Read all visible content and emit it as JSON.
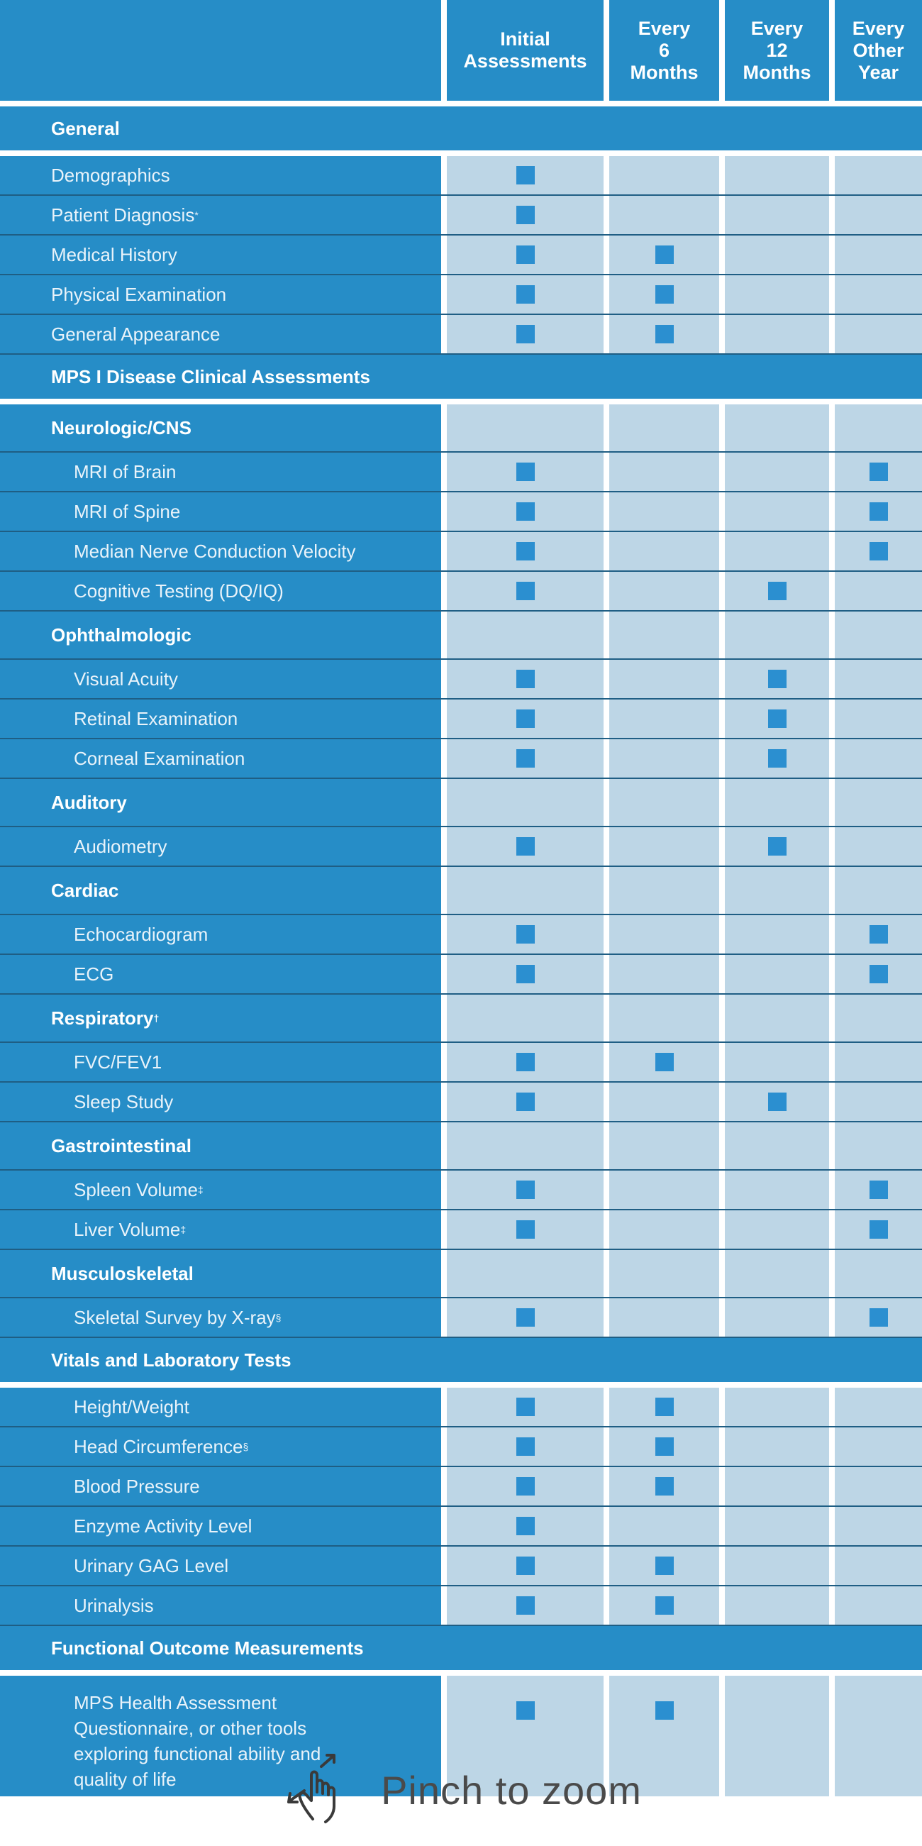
{
  "header": {
    "col1": "",
    "col2": "Initial\nAssessments",
    "col3": "Every\n6\nMonths",
    "col4": "Every\n12\nMonths",
    "col5": "Every\nOther\nYear"
  },
  "sections": {
    "general": "General",
    "mps": "MPS I Disease Clinical Assessments",
    "neuro": "Neurologic/CNS",
    "ophth": "Ophthalmologic",
    "auditory": "Auditory",
    "cardiac": "Cardiac",
    "resp": "Respiratory",
    "resp_mark": "†",
    "gi": "Gastrointestinal",
    "msk": "Musculoskeletal",
    "vitals": "Vitals and Laboratory Tests",
    "functional": "Functional Outcome Measurements"
  },
  "rows": {
    "demographics": "Demographics",
    "diagnosis": "Patient Diagnosis",
    "diagnosis_mark": "*",
    "history": "Medical History",
    "physical": "Physical Examination",
    "appearance": "General Appearance",
    "mri_brain": "MRI of Brain",
    "mri_spine": "MRI of Spine",
    "nerve": "Median Nerve Conduction Velocity",
    "cognitive": "Cognitive Testing (DQ/IQ)",
    "visual": "Visual Acuity",
    "retinal": "Retinal Examination",
    "corneal": "Corneal Examination",
    "audiometry": "Audiometry",
    "echo": "Echocardiogram",
    "ecg": "ECG",
    "fvc": "FVC/FEV1",
    "sleep": "Sleep Study",
    "spleen": "Spleen Volume",
    "spleen_mark": "‡",
    "liver": "Liver Volume",
    "liver_mark": "‡",
    "skeletal": "Skeletal Survey by X-ray",
    "skeletal_mark": "§",
    "height": "Height/Weight",
    "head": "Head Circumference",
    "head_mark": "§",
    "bp": "Blood Pressure",
    "enzyme": "Enzyme Activity Level",
    "gag": "Urinary GAG Level",
    "urinalysis": "Urinalysis",
    "mps_haq": "MPS Health Assessment\nQuestionnaire, or other tools\nexploring functional ability and\nquality of life"
  },
  "schedule": {
    "demographics": [
      true,
      false,
      false,
      false
    ],
    "diagnosis": [
      true,
      false,
      false,
      false
    ],
    "history": [
      true,
      true,
      false,
      false
    ],
    "physical": [
      true,
      true,
      false,
      false
    ],
    "appearance": [
      true,
      true,
      false,
      false
    ],
    "mri_brain": [
      true,
      false,
      false,
      true
    ],
    "mri_spine": [
      true,
      false,
      false,
      true
    ],
    "nerve": [
      true,
      false,
      false,
      true
    ],
    "cognitive": [
      true,
      false,
      true,
      false
    ],
    "visual": [
      true,
      false,
      true,
      false
    ],
    "retinal": [
      true,
      false,
      true,
      false
    ],
    "corneal": [
      true,
      false,
      true,
      false
    ],
    "audiometry": [
      true,
      false,
      true,
      false
    ],
    "echo": [
      true,
      false,
      false,
      true
    ],
    "ecg": [
      true,
      false,
      false,
      true
    ],
    "fvc": [
      true,
      true,
      false,
      false
    ],
    "sleep": [
      true,
      false,
      true,
      false
    ],
    "spleen": [
      true,
      false,
      false,
      true
    ],
    "liver": [
      true,
      false,
      false,
      true
    ],
    "skeletal": [
      true,
      false,
      false,
      true
    ],
    "height": [
      true,
      true,
      false,
      false
    ],
    "head": [
      true,
      true,
      false,
      false
    ],
    "bp": [
      true,
      true,
      false,
      false
    ],
    "enzyme": [
      true,
      false,
      false,
      false
    ],
    "gag": [
      true,
      true,
      false,
      false
    ],
    "urinalysis": [
      true,
      true,
      false,
      false
    ],
    "mps_haq": [
      true,
      true,
      false,
      false
    ]
  },
  "footer": {
    "pinch_label": "Pinch to zoom",
    "pinch_icon": "pinch-gesture-icon"
  },
  "colors": {
    "blue": "#268dc7",
    "cell": "#bdd6e6",
    "marker": "#2b8fd0"
  }
}
